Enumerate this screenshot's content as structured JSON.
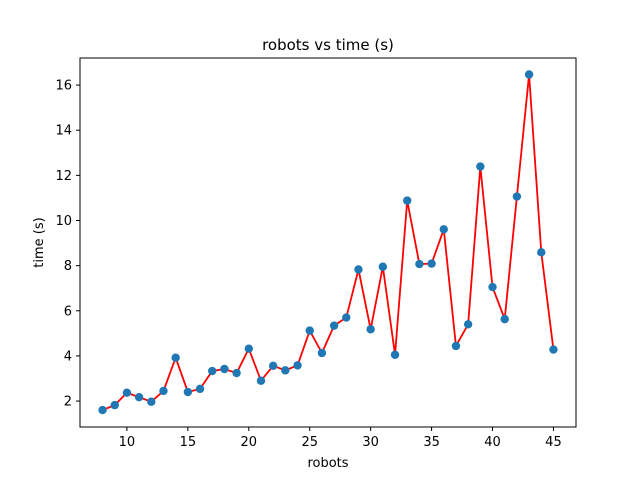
{
  "chart_data": {
    "type": "scatter",
    "title": "robots vs time (s)",
    "xlabel": "robots",
    "ylabel": "time (s)",
    "xlim": [
      6.15,
      46.85
    ],
    "ylim": [
      0.85,
      17.2
    ],
    "xticks": [
      10,
      15,
      20,
      25,
      30,
      35,
      40,
      45
    ],
    "yticks": [
      2,
      4,
      6,
      8,
      10,
      12,
      14,
      16
    ],
    "grid": false,
    "series": [
      {
        "marker_color": "#1f77b4",
        "line_color": "#ff0000",
        "x": [
          8,
          9,
          10,
          11,
          12,
          13,
          14,
          15,
          16,
          17,
          18,
          19,
          20,
          21,
          22,
          23,
          24,
          25,
          26,
          27,
          28,
          29,
          30,
          31,
          32,
          33,
          34,
          35,
          36,
          37,
          38,
          39,
          40,
          41,
          42,
          43,
          44,
          45
        ],
        "y": [
          1.6,
          1.82,
          2.37,
          2.17,
          1.97,
          2.45,
          3.92,
          2.4,
          2.54,
          3.33,
          3.42,
          3.24,
          4.32,
          2.9,
          3.56,
          3.36,
          3.58,
          5.12,
          4.13,
          5.34,
          5.7,
          7.83,
          5.18,
          7.95,
          4.05,
          10.88,
          8.07,
          8.09,
          9.61,
          4.44,
          5.4,
          12.39,
          7.05,
          5.63,
          11.06,
          16.47,
          8.59,
          4.28
        ]
      }
    ]
  }
}
